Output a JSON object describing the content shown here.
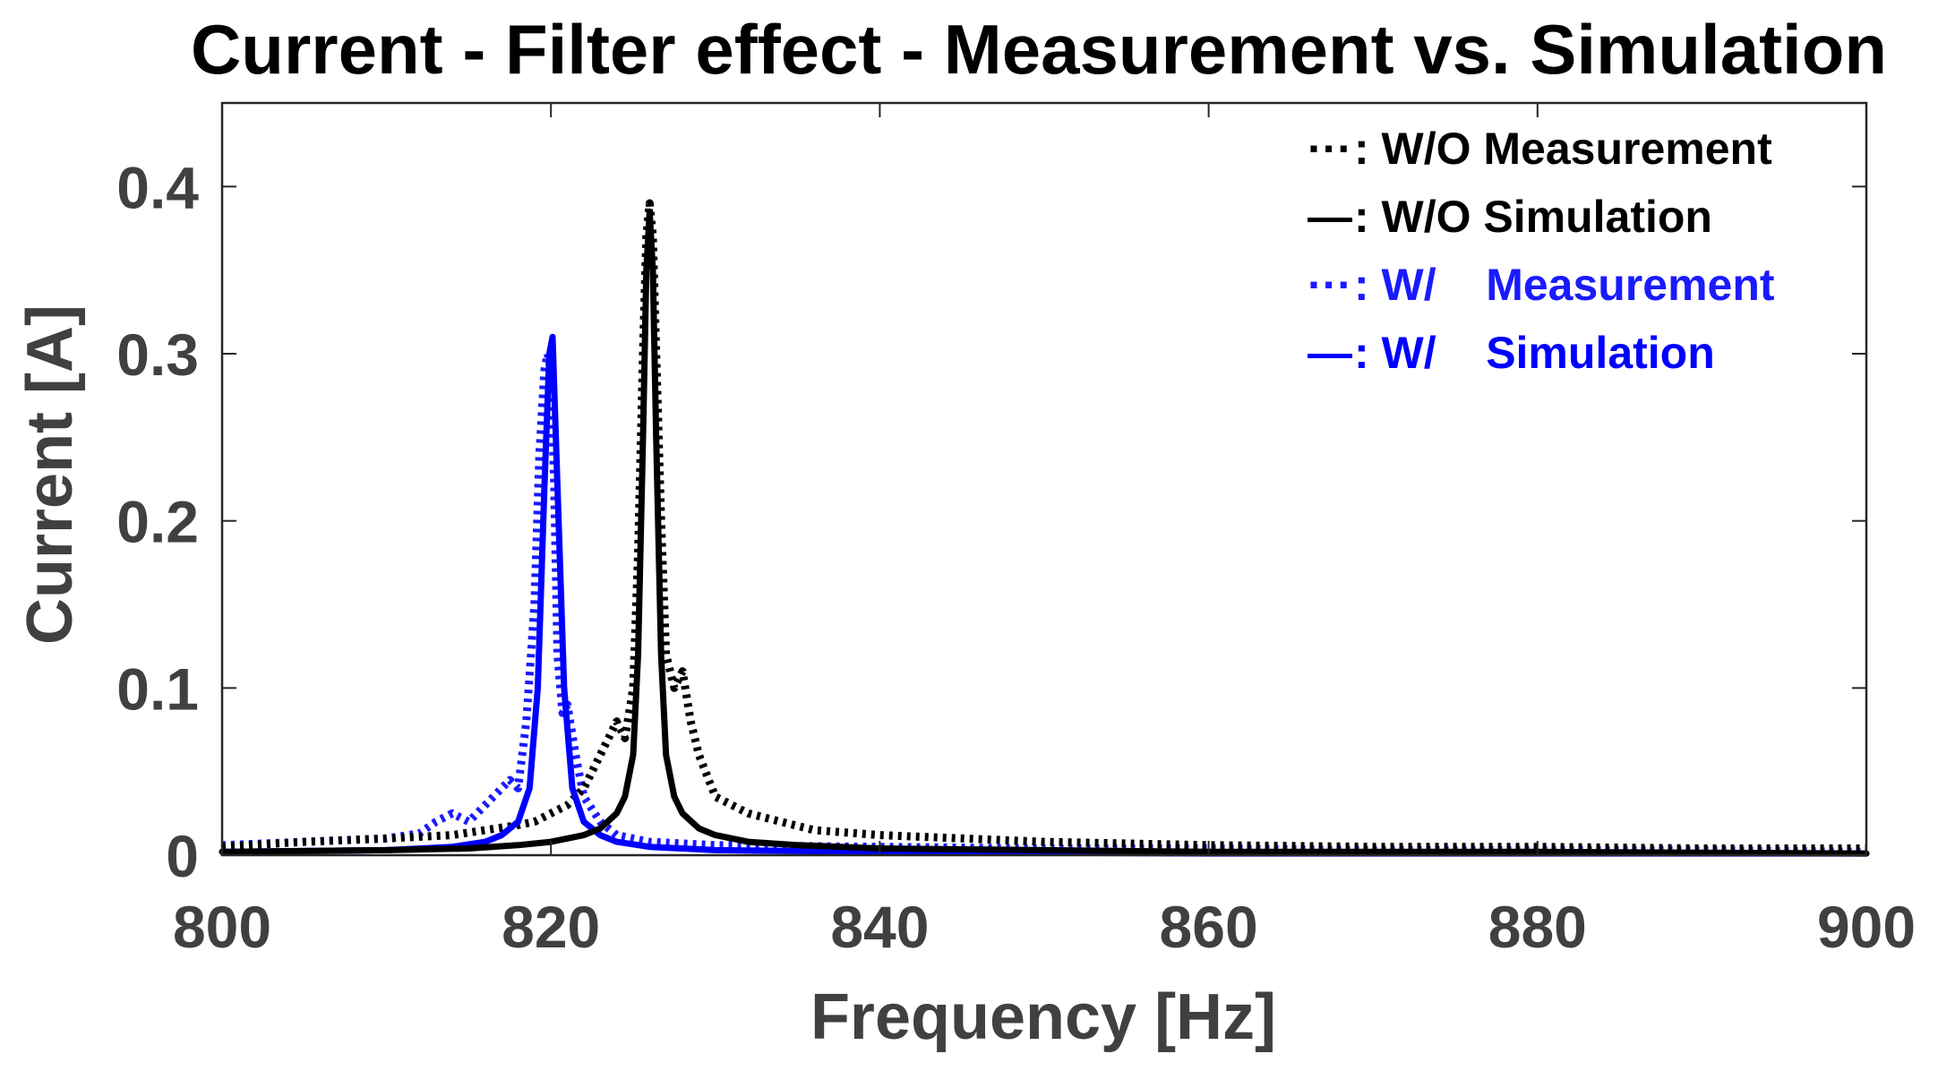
{
  "chart_data": {
    "type": "line",
    "title": "Current - Filter effect - Measurement vs. Simulation",
    "xlabel": "Frequency [Hz]",
    "ylabel": "Current [A]",
    "xlim": [
      800,
      900
    ],
    "ylim": [
      0,
      0.45
    ],
    "xticks": [
      800,
      820,
      840,
      860,
      880,
      900
    ],
    "xtick_labels": [
      "800",
      "820",
      "840",
      "860",
      "880",
      "900"
    ],
    "yticks": [
      0,
      0.1,
      0.2,
      0.3,
      0.4
    ],
    "ytick_labels": [
      "0",
      "0.1",
      "0.2",
      "0.3",
      "0.4"
    ],
    "grid": false,
    "legend_position": "top-right",
    "series": [
      {
        "name": "W/O Measurement",
        "legend_marker": "···",
        "legend_label": ": W/O Measurement",
        "color": "#000000",
        "style": "dotted",
        "x": [
          800,
          805,
          810,
          814,
          816,
          818,
          819,
          820,
          821,
          822,
          822.5,
          823,
          823.5,
          824,
          824.5,
          825,
          825.3,
          825.6,
          825.8,
          826,
          826.2,
          826.4,
          826.7,
          827,
          827.5,
          828,
          828.5,
          829,
          830,
          831,
          832,
          834,
          836,
          840,
          845,
          850,
          860,
          870,
          880,
          890,
          900
        ],
        "y": [
          0.005,
          0.008,
          0.01,
          0.012,
          0.015,
          0.018,
          0.02,
          0.025,
          0.03,
          0.04,
          0.05,
          0.06,
          0.07,
          0.08,
          0.07,
          0.1,
          0.18,
          0.3,
          0.37,
          0.39,
          0.37,
          0.3,
          0.2,
          0.12,
          0.1,
          0.11,
          0.08,
          0.06,
          0.035,
          0.03,
          0.025,
          0.02,
          0.015,
          0.012,
          0.01,
          0.008,
          0.006,
          0.005,
          0.005,
          0.004,
          0.004
        ]
      },
      {
        "name": "W/O Simulation",
        "legend_marker": "—",
        "legend_label": ": W/O Simulation",
        "color": "#000000",
        "style": "solid",
        "x": [
          800,
          810,
          815,
          818,
          820,
          822,
          823,
          824,
          824.5,
          825,
          825.3,
          825.6,
          825.8,
          826,
          826.2,
          826.4,
          826.7,
          827,
          827.5,
          828,
          829,
          830,
          832,
          835,
          840,
          850,
          860,
          880,
          900
        ],
        "y": [
          0.002,
          0.003,
          0.004,
          0.006,
          0.008,
          0.012,
          0.016,
          0.025,
          0.035,
          0.06,
          0.12,
          0.25,
          0.35,
          0.385,
          0.35,
          0.25,
          0.12,
          0.06,
          0.035,
          0.025,
          0.016,
          0.012,
          0.008,
          0.006,
          0.004,
          0.003,
          0.002,
          0.002,
          0.001
        ]
      },
      {
        "name": "W/ Measurement",
        "legend_marker": "···",
        "legend_label": ": W/    Measurement",
        "color": "#1a1aff",
        "style": "dotted",
        "x": [
          800,
          805,
          810,
          812,
          813,
          814,
          815,
          816,
          817,
          817.5,
          818,
          818.5,
          819,
          819.3,
          819.6,
          819.8,
          820,
          820.2,
          820.4,
          820.7,
          821,
          821.5,
          822,
          823,
          824,
          826,
          830,
          840,
          850,
          860,
          870,
          880,
          890,
          900
        ],
        "y": [
          0.006,
          0.008,
          0.01,
          0.013,
          0.02,
          0.025,
          0.02,
          0.03,
          0.04,
          0.045,
          0.04,
          0.08,
          0.15,
          0.24,
          0.29,
          0.3,
          0.29,
          0.22,
          0.12,
          0.085,
          0.09,
          0.06,
          0.035,
          0.02,
          0.012,
          0.008,
          0.006,
          0.005,
          0.004,
          0.004,
          0.003,
          0.003,
          0.003,
          0.002
        ]
      },
      {
        "name": "W/ Simulation",
        "legend_marker": "—",
        "legend_label": ": W/    Simulation",
        "color": "#0000ff",
        "style": "solid",
        "x": [
          800,
          810,
          814,
          816,
          817,
          818,
          818.7,
          819.2,
          819.6,
          819.9,
          820.1,
          820.4,
          820.8,
          821.3,
          822,
          823,
          824,
          826,
          830,
          840,
          860,
          880,
          900
        ],
        "y": [
          0.002,
          0.003,
          0.005,
          0.008,
          0.012,
          0.02,
          0.04,
          0.1,
          0.22,
          0.3,
          0.31,
          0.22,
          0.1,
          0.04,
          0.02,
          0.012,
          0.008,
          0.005,
          0.003,
          0.002,
          0.001,
          0.001,
          0.001
        ]
      }
    ]
  }
}
